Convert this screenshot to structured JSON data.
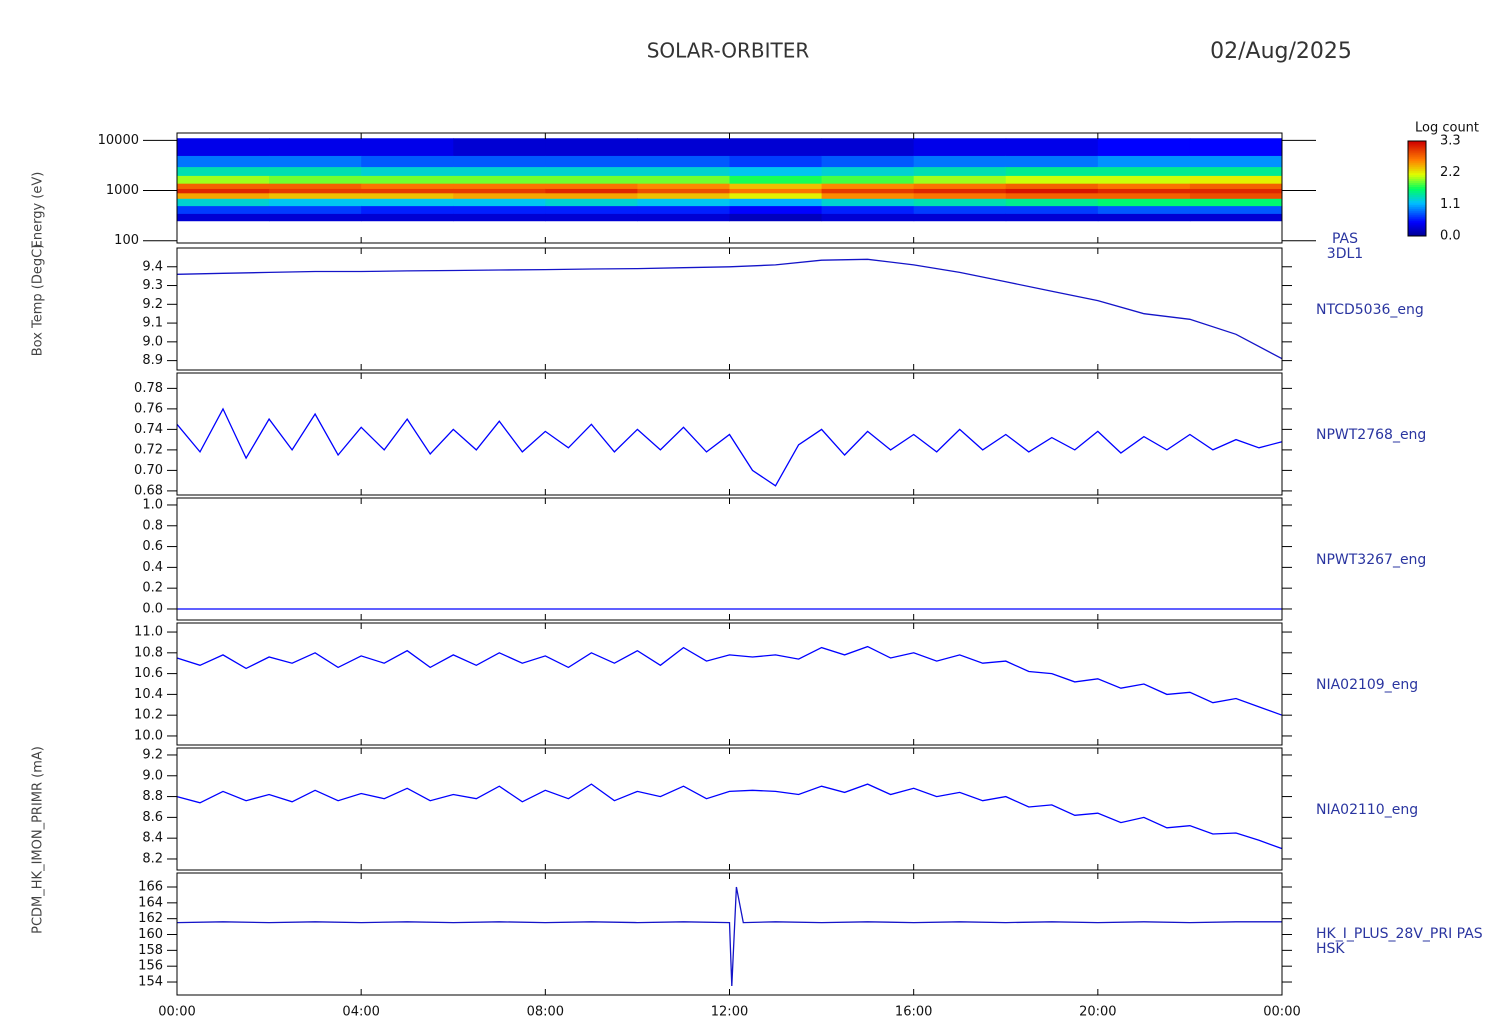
{
  "header": {
    "title": "SOLAR-ORBITER",
    "date": "02/Aug/2025"
  },
  "time_axis": {
    "xlim": [
      0,
      24
    ],
    "xticks": [
      {
        "value": 0,
        "label": "00:00"
      },
      {
        "value": 4,
        "label": "04:00"
      },
      {
        "value": 8,
        "label": "08:00"
      },
      {
        "value": 12,
        "label": "12:00"
      },
      {
        "value": 16,
        "label": "16:00"
      },
      {
        "value": 20,
        "label": "20:00"
      },
      {
        "value": 24,
        "label": "00:00"
      }
    ]
  },
  "chart_data": [
    {
      "type": "heatmap",
      "ylabel": "Energy (eV)",
      "label": [
        "PAS",
        "3DL1"
      ],
      "log_y": true,
      "ylim": [
        90,
        14000
      ],
      "yticks": [
        100,
        1000,
        10000
      ],
      "x_edges": [
        0,
        2,
        4,
        6,
        8,
        10,
        12,
        14,
        16,
        18,
        20,
        22,
        24
      ],
      "y_edges": [
        250,
        350,
        500,
        700,
        900,
        1100,
        1400,
        2000,
        3000,
        5000,
        11000
      ],
      "z": [
        [
          0.3,
          0.7,
          1.3,
          2.5,
          3.1,
          2.8,
          2.0,
          1.4,
          0.9,
          0.4
        ],
        [
          0.3,
          0.7,
          1.2,
          2.4,
          3.0,
          2.8,
          1.9,
          1.4,
          0.9,
          0.4
        ],
        [
          0.3,
          0.6,
          1.2,
          2.4,
          3.0,
          2.7,
          1.9,
          1.3,
          0.8,
          0.4
        ],
        [
          0.3,
          0.6,
          1.2,
          2.5,
          3.0,
          2.7,
          1.9,
          1.3,
          0.8,
          0.3
        ],
        [
          0.3,
          0.6,
          1.3,
          2.5,
          3.1,
          2.7,
          1.9,
          1.3,
          0.8,
          0.3
        ],
        [
          0.3,
          0.6,
          1.2,
          2.4,
          2.9,
          2.6,
          1.9,
          1.3,
          0.8,
          0.3
        ],
        [
          0.2,
          0.5,
          1.1,
          2.2,
          2.7,
          2.4,
          1.7,
          1.2,
          0.7,
          0.3
        ],
        [
          0.3,
          0.6,
          1.3,
          2.6,
          3.0,
          2.6,
          1.8,
          1.3,
          0.8,
          0.3
        ],
        [
          0.3,
          0.7,
          1.4,
          2.7,
          3.1,
          2.7,
          2.0,
          1.4,
          0.9,
          0.4
        ],
        [
          0.3,
          0.7,
          1.5,
          2.8,
          3.2,
          2.8,
          2.1,
          1.5,
          0.9,
          0.4
        ],
        [
          0.3,
          0.8,
          1.6,
          2.8,
          3.1,
          2.7,
          2.1,
          1.5,
          1.0,
          0.5
        ],
        [
          0.3,
          0.8,
          1.6,
          2.9,
          3.1,
          2.8,
          2.2,
          1.5,
          1.0,
          0.5
        ]
      ],
      "colorbar": {
        "title": "Log count",
        "lim": [
          0,
          3.3
        ],
        "ticks": [
          {
            "value": 0,
            "label": "0.0"
          },
          1.1,
          2.2,
          3.3
        ]
      }
    },
    {
      "type": "line",
      "ylabel": "Box Temp (DegC)",
      "label": [
        "NTCD5036_eng"
      ],
      "color": "#1414c8",
      "ylim": [
        8.85,
        9.5
      ],
      "yticks": [
        8.9,
        {
          "value": 9,
          "label": "9.0"
        },
        9.1,
        9.2,
        9.3,
        9.4
      ],
      "x": [
        0,
        1,
        2,
        3,
        4,
        5,
        6,
        7,
        8,
        9,
        10,
        11,
        12,
        13,
        14,
        15,
        16,
        17,
        18,
        19,
        20,
        21,
        22,
        23,
        24
      ],
      "values": [
        9.36,
        9.365,
        9.37,
        9.375,
        9.375,
        9.378,
        9.38,
        9.383,
        9.385,
        9.388,
        9.39,
        9.395,
        9.4,
        9.41,
        9.435,
        9.44,
        9.41,
        9.37,
        9.32,
        9.27,
        9.22,
        9.15,
        9.12,
        9.04,
        8.91
      ]
    },
    {
      "type": "line",
      "label": [
        "NPWT2768_eng"
      ],
      "color": "#0000ff",
      "ylim": [
        0.676,
        0.795
      ],
      "yticks": [
        0.68,
        {
          "value": 0.7,
          "label": "0.70"
        },
        0.72,
        0.74,
        0.76,
        0.78
      ],
      "x": [
        0,
        0.5,
        1,
        1.5,
        2,
        2.5,
        3,
        3.5,
        4,
        4.5,
        5,
        5.5,
        6,
        6.5,
        7,
        7.5,
        8,
        8.5,
        9,
        9.5,
        10,
        10.5,
        11,
        11.5,
        12,
        12.5,
        13,
        13.5,
        14,
        14.5,
        15,
        15.5,
        16,
        16.5,
        17,
        17.5,
        18,
        18.5,
        19,
        19.5,
        20,
        20.5,
        21,
        21.5,
        22,
        22.5,
        23,
        23.5,
        24
      ],
      "values": [
        0.745,
        0.718,
        0.76,
        0.712,
        0.75,
        0.72,
        0.755,
        0.715,
        0.742,
        0.72,
        0.75,
        0.716,
        0.74,
        0.72,
        0.748,
        0.718,
        0.738,
        0.722,
        0.745,
        0.718,
        0.74,
        0.72,
        0.742,
        0.718,
        0.735,
        0.7,
        0.685,
        0.725,
        0.74,
        0.715,
        0.738,
        0.72,
        0.735,
        0.718,
        0.74,
        0.72,
        0.735,
        0.718,
        0.732,
        0.72,
        0.738,
        0.717,
        0.733,
        0.72,
        0.735,
        0.72,
        0.73,
        0.722,
        0.728
      ]
    },
    {
      "type": "line",
      "label": [
        "NPWT3267_eng"
      ],
      "color": "#0000ff",
      "ylim": [
        -0.106,
        1.067
      ],
      "yticks": [
        {
          "value": 0,
          "label": "0.0"
        },
        0.2,
        0.4,
        0.6,
        0.8,
        {
          "value": 1,
          "label": "1.0"
        }
      ],
      "x": [
        0,
        24
      ],
      "values": [
        0,
        0
      ]
    },
    {
      "type": "line",
      "label": [
        "NIA02109_eng"
      ],
      "color": "#0000ff",
      "ylim": [
        9.913,
        11.087
      ],
      "yticks": [
        {
          "value": 10,
          "label": "10.0"
        },
        10.2,
        10.4,
        10.6,
        10.8,
        {
          "value": 11,
          "label": "11.0"
        }
      ],
      "x": [
        0,
        0.5,
        1,
        1.5,
        2,
        2.5,
        3,
        3.5,
        4,
        4.5,
        5,
        5.5,
        6,
        6.5,
        7,
        7.5,
        8,
        8.5,
        9,
        9.5,
        10,
        10.5,
        11,
        11.5,
        12,
        12.5,
        13,
        13.5,
        14,
        14.5,
        15,
        15.5,
        16,
        16.5,
        17,
        17.5,
        18,
        18.5,
        19,
        19.5,
        20,
        20.5,
        21,
        21.5,
        22,
        22.5,
        23,
        23.5,
        24
      ],
      "values": [
        10.75,
        10.68,
        10.78,
        10.65,
        10.76,
        10.7,
        10.8,
        10.66,
        10.77,
        10.7,
        10.82,
        10.66,
        10.78,
        10.68,
        10.8,
        10.7,
        10.77,
        10.66,
        10.8,
        10.7,
        10.82,
        10.68,
        10.85,
        10.72,
        10.78,
        10.76,
        10.78,
        10.74,
        10.85,
        10.78,
        10.86,
        10.75,
        10.8,
        10.72,
        10.78,
        10.7,
        10.72,
        10.62,
        10.6,
        10.52,
        10.55,
        10.46,
        10.5,
        10.4,
        10.42,
        10.32,
        10.36,
        10.28,
        10.2
      ]
    },
    {
      "type": "line",
      "label": [
        "NIA02110_eng"
      ],
      "color": "#0000ff",
      "ylim": [
        8.094,
        9.267
      ],
      "yticks": [
        8.2,
        8.4,
        8.6,
        8.8,
        {
          "value": 9,
          "label": "9.0"
        },
        9.2
      ],
      "x": [
        0,
        0.5,
        1,
        1.5,
        2,
        2.5,
        3,
        3.5,
        4,
        4.5,
        5,
        5.5,
        6,
        6.5,
        7,
        7.5,
        8,
        8.5,
        9,
        9.5,
        10,
        10.5,
        11,
        11.5,
        12,
        12.5,
        13,
        13.5,
        14,
        14.5,
        15,
        15.5,
        16,
        16.5,
        17,
        17.5,
        18,
        18.5,
        19,
        19.5,
        20,
        20.5,
        21,
        21.5,
        22,
        22.5,
        23,
        23.5,
        24
      ],
      "values": [
        8.8,
        8.74,
        8.85,
        8.76,
        8.82,
        8.75,
        8.86,
        8.76,
        8.83,
        8.78,
        8.88,
        8.76,
        8.82,
        8.78,
        8.9,
        8.75,
        8.86,
        8.78,
        8.92,
        8.76,
        8.85,
        8.8,
        8.9,
        8.78,
        8.85,
        8.86,
        8.85,
        8.82,
        8.9,
        8.84,
        8.92,
        8.82,
        8.88,
        8.8,
        8.84,
        8.76,
        8.8,
        8.7,
        8.72,
        8.62,
        8.64,
        8.55,
        8.6,
        8.5,
        8.52,
        8.44,
        8.45,
        8.38,
        8.3
      ]
    },
    {
      "type": "line",
      "ylabel": "PCDM_HK_IMON_PRIMR (mA)",
      "label": [
        "HK_I_PLUS_28V_PRI PAS",
        "HSK"
      ],
      "color": "#1414c8",
      "ylim": [
        152.36,
        167.77
      ],
      "yticks": [
        154,
        156,
        158,
        160,
        162,
        164,
        166
      ],
      "x": [
        0,
        1,
        2,
        3,
        4,
        5,
        6,
        7,
        8,
        9,
        10,
        11,
        12,
        12.05,
        12.15,
        12.3,
        13,
        14,
        15,
        16,
        17,
        18,
        19,
        20,
        21,
        22,
        23,
        24
      ],
      "values": [
        161.5,
        161.6,
        161.5,
        161.6,
        161.5,
        161.6,
        161.5,
        161.6,
        161.5,
        161.6,
        161.5,
        161.6,
        161.5,
        153.5,
        166,
        161.5,
        161.6,
        161.5,
        161.6,
        161.5,
        161.6,
        161.5,
        161.6,
        161.5,
        161.6,
        161.5,
        161.6,
        161.6
      ]
    }
  ]
}
